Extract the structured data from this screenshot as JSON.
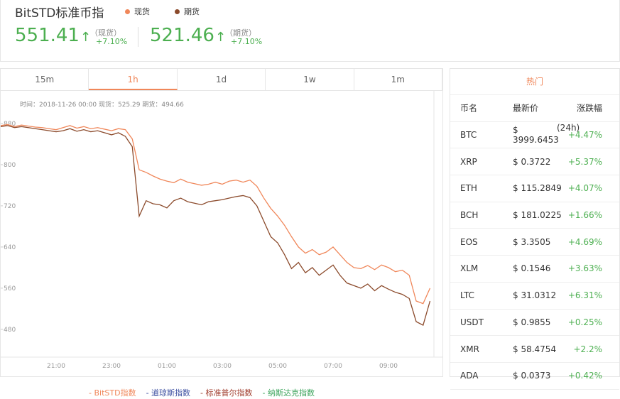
{
  "header": {
    "title": "BitSTD标准币指",
    "legend": [
      {
        "name": "现货",
        "color": "#f0875a"
      },
      {
        "name": "期货",
        "color": "#8b4a2b"
      }
    ],
    "quotes": [
      {
        "price": "551.41",
        "arrow": "↑",
        "label": "（现货）",
        "change": "+7.10%"
      },
      {
        "price": "521.46",
        "arrow": "↑",
        "label": "（期货）",
        "change": "+7.10%"
      }
    ]
  },
  "tabs": {
    "items": [
      "15m",
      "1h",
      "1d",
      "1w",
      "1m"
    ],
    "active": 1
  },
  "tooltip": {
    "time": "时间：2018-11-26 00:00",
    "spot": "现货：525.29",
    "futures": "期货：494.66"
  },
  "chart_data": {
    "type": "line",
    "categories": [
      null,
      null,
      null,
      null,
      null,
      null,
      null,
      null,
      "21:00",
      null,
      null,
      null,
      null,
      null,
      null,
      null,
      "23:00",
      null,
      null,
      null,
      null,
      null,
      null,
      null,
      "01:00",
      null,
      null,
      null,
      null,
      null,
      null,
      null,
      "03:00",
      null,
      null,
      null,
      null,
      null,
      null,
      null,
      "05:00",
      null,
      null,
      null,
      null,
      null,
      null,
      null,
      "07:00",
      null,
      null,
      null,
      null,
      null,
      null,
      null,
      "09:00",
      null,
      null,
      null,
      null,
      null,
      null
    ],
    "series": [
      {
        "name": "现货",
        "color": "#f0875a",
        "values": [
          876,
          878,
          874,
          877,
          875,
          873,
          872,
          870,
          868,
          872,
          876,
          871,
          874,
          870,
          872,
          869,
          866,
          870,
          868,
          850,
          790,
          785,
          778,
          772,
          768,
          765,
          772,
          766,
          763,
          760,
          762,
          766,
          762,
          768,
          770,
          766,
          770,
          758,
          735,
          715,
          700,
          682,
          660,
          640,
          628,
          635,
          625,
          630,
          640,
          625,
          610,
          600,
          598,
          604,
          596,
          605,
          600,
          592,
          595,
          585,
          535,
          530,
          560
        ]
      },
      {
        "name": "期货",
        "color": "#8b4a2b",
        "values": [
          874,
          876,
          872,
          874,
          872,
          870,
          868,
          866,
          864,
          866,
          870,
          865,
          868,
          864,
          866,
          862,
          858,
          862,
          855,
          835,
          700,
          730,
          724,
          722,
          716,
          730,
          735,
          728,
          725,
          722,
          728,
          730,
          732,
          735,
          738,
          740,
          736,
          720,
          690,
          660,
          648,
          625,
          598,
          610,
          590,
          600,
          585,
          595,
          605,
          585,
          570,
          565,
          560,
          568,
          555,
          565,
          558,
          552,
          548,
          540,
          495,
          488,
          535
        ]
      }
    ],
    "ylim": [
      426,
      931
    ],
    "yticks": [
      480,
      560,
      640,
      720,
      800,
      880
    ]
  },
  "hot": {
    "title": "热门",
    "headers": [
      "币名",
      "最新价",
      "涨跌幅"
    ],
    "note": "(24h)",
    "rows": [
      [
        "BTC",
        "$ 3999.6453",
        "+4.47%"
      ],
      [
        "XRP",
        "$ 0.3722",
        "+5.37%"
      ],
      [
        "ETH",
        "$ 115.2849",
        "+4.07%"
      ],
      [
        "BCH",
        "$ 181.0225",
        "+1.66%"
      ],
      [
        "EOS",
        "$ 3.3505",
        "+4.69%"
      ],
      [
        "XLM",
        "$ 0.1546",
        "+3.63%"
      ],
      [
        "LTC",
        "$ 31.0312",
        "+6.31%"
      ],
      [
        "USDT",
        "$ 0.9855",
        "+0.25%"
      ],
      [
        "XMR",
        "$ 58.4754",
        "+2.2%"
      ],
      [
        "ADA",
        "$ 0.0373",
        "+0.42%"
      ]
    ]
  },
  "index_links": [
    {
      "name": "BitSTD指数",
      "color": "#f0875a"
    },
    {
      "name": "道琼斯指数",
      "color": "#3b4ea0"
    },
    {
      "name": "标准普尔指数",
      "color": "#a03c2c"
    },
    {
      "name": "纳斯达克指数",
      "color": "#3aa35a"
    }
  ]
}
